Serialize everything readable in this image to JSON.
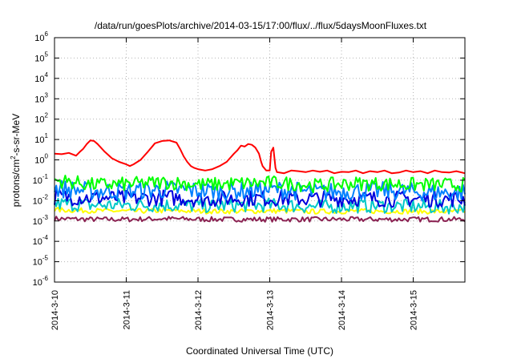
{
  "chart_data": {
    "type": "line",
    "title": "/data/run/goesPlots/archive/2014-03-15/17:00/flux/../flux/5daysMoonFluxes.txt",
    "xlabel": "Coordinated Universal Time (UTC)",
    "ylabel": "protons/cm2-s-sr-MeV",
    "ylabel_parts": {
      "base": "protons/cm",
      "exp": "2",
      "rest": "-s-sr-MeV"
    },
    "yscale": "log",
    "ylim": [
      1e-06,
      1000000.0
    ],
    "xlim": [
      0,
      5.72
    ],
    "grid": true,
    "ytick_exponents": [
      -6,
      -5,
      -4,
      -3,
      -2,
      -1,
      0,
      1,
      2,
      3,
      4,
      5,
      6
    ],
    "ytick_base": "10",
    "xticks": [
      {
        "x": 0,
        "label": "2014-3-10"
      },
      {
        "x": 1,
        "label": "2014-3-11"
      },
      {
        "x": 2,
        "label": "2014-3-12"
      },
      {
        "x": 3,
        "label": "2014-3-13"
      },
      {
        "x": 4,
        "label": "2014-3-14"
      },
      {
        "x": 5,
        "label": "2014-3-15"
      }
    ],
    "series": [
      {
        "color": "#ff0000",
        "x": [
          0,
          0.1,
          0.2,
          0.3,
          0.35,
          0.4,
          0.45,
          0.5,
          0.55,
          0.6,
          0.7,
          0.8,
          0.9,
          1.0,
          1.05,
          1.1,
          1.2,
          1.3,
          1.35,
          1.4,
          1.5,
          1.6,
          1.7,
          1.75,
          1.8,
          1.85,
          1.9,
          1.95,
          2.0,
          2.1,
          2.2,
          2.3,
          2.4,
          2.5,
          2.55,
          2.6,
          2.65,
          2.7,
          2.75,
          2.8,
          2.85,
          2.88,
          2.9,
          2.95,
          3.0,
          3.02,
          3.05,
          3.08,
          3.1,
          3.2,
          3.3,
          3.4,
          3.5,
          3.6,
          3.7,
          3.8,
          3.9,
          4.0,
          4.1,
          4.2,
          4.3,
          4.4,
          4.5,
          4.6,
          4.7,
          4.8,
          4.9,
          5.0,
          5.1,
          5.2,
          5.3,
          5.4,
          5.5,
          5.6,
          5.72
        ],
        "y": [
          2.0,
          1.9,
          2.2,
          1.6,
          2.4,
          3.5,
          6.0,
          9.0,
          8.5,
          6.0,
          2.5,
          1.2,
          0.8,
          0.6,
          0.5,
          0.6,
          1.0,
          2.5,
          4.0,
          6.5,
          8.5,
          9.0,
          7.0,
          3.5,
          1.5,
          0.8,
          0.5,
          0.4,
          0.35,
          0.3,
          0.35,
          0.5,
          0.8,
          2.0,
          3.0,
          5.0,
          4.5,
          6.0,
          5.5,
          4.0,
          2.0,
          0.8,
          0.5,
          0.3,
          0.3,
          2.5,
          4.0,
          0.4,
          0.25,
          0.22,
          0.3,
          0.28,
          0.25,
          0.3,
          0.26,
          0.3,
          0.22,
          0.26,
          0.25,
          0.3,
          0.22,
          0.28,
          0.25,
          0.3,
          0.22,
          0.24,
          0.3,
          0.25,
          0.28,
          0.22,
          0.3,
          0.25,
          0.24,
          0.28,
          0.22
        ]
      },
      {
        "color": "#00ff00",
        "base": [
          0.1,
          0.06,
          0.065,
          0.08,
          0.06,
          0.07,
          0.075,
          0.055,
          0.07,
          0.065,
          0.06,
          0.06
        ],
        "spread": 0.35
      },
      {
        "color": "#0080ff",
        "base": [
          0.04,
          0.03,
          0.03,
          0.035,
          0.03,
          0.03,
          0.035,
          0.025,
          0.03,
          0.03,
          0.025,
          0.025
        ],
        "spread": 0.45
      },
      {
        "color": "#0000dd",
        "base": [
          0.015,
          0.014,
          0.013,
          0.014,
          0.012,
          0.013,
          0.013,
          0.012,
          0.013,
          0.012,
          0.012,
          0.012
        ],
        "spread": 0.4
      },
      {
        "color": "#00c8c8",
        "base": [
          0.007,
          0.006,
          0.006,
          0.006,
          0.0055,
          0.006,
          0.006,
          0.005,
          0.0055,
          0.0055,
          0.005,
          0.005
        ],
        "spread": 0.35
      },
      {
        "color": "#ffff00",
        "base": [
          0.0035,
          0.0032,
          0.003,
          0.0032,
          0.003,
          0.003,
          0.0031,
          0.0029,
          0.003,
          0.003,
          0.0029,
          0.0029
        ],
        "spread": 0.12
      },
      {
        "color": "#8b2252",
        "base": [
          0.0013,
          0.0012,
          0.0012,
          0.0013,
          0.0012,
          0.0012,
          0.0012,
          0.0012,
          0.0012,
          0.0012,
          0.0012,
          0.0012
        ],
        "spread": 0.12
      }
    ]
  }
}
